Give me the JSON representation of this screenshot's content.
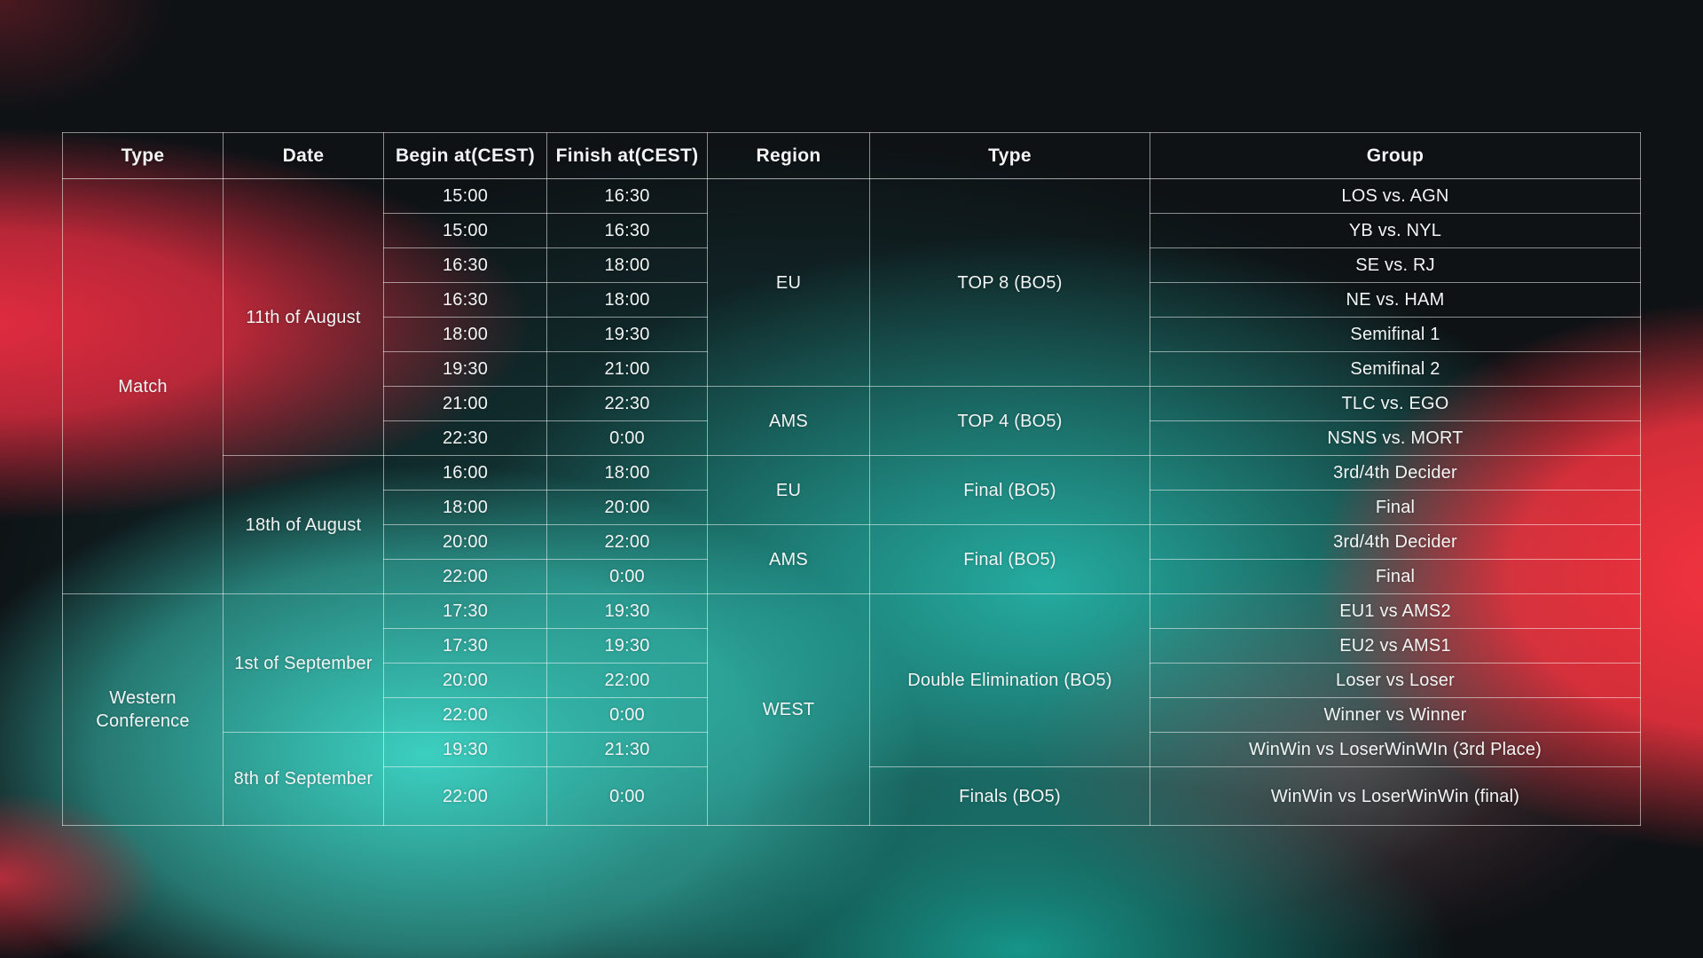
{
  "theme": {
    "accent_red": "#e62c40",
    "accent_red_bright": "#f5333f",
    "accent_teal": "#3ed8c8",
    "accent_teal_deep": "#1aa396",
    "background_dark": "#0e1215",
    "table_border": "rgba(255,255,255,0.52)",
    "text_color": "#f2f4f4"
  },
  "table": {
    "headers": [
      "Type",
      "Date",
      "Begin at(CEST)",
      "Finish at(CEST)",
      "Region",
      "Type",
      "Group"
    ],
    "merged_columns": {
      "type": [
        {
          "label": "Match",
          "span": 12
        },
        {
          "label": "Western Conference",
          "span": 6
        }
      ],
      "date": [
        {
          "label": "11th of August",
          "span": 8
        },
        {
          "label": "18th of August",
          "span": 4
        },
        {
          "label": "1st of September",
          "span": 4
        },
        {
          "label": "8th of September",
          "span": 2
        }
      ],
      "region": [
        {
          "label": "EU",
          "span": 6
        },
        {
          "label": "AMS",
          "span": 2
        },
        {
          "label": "EU",
          "span": 2
        },
        {
          "label": "AMS",
          "span": 2
        },
        {
          "label": "WEST",
          "span": 6
        }
      ],
      "stage": [
        {
          "label": "TOP 8 (BO5)",
          "span": 6
        },
        {
          "label": "TOP 4 (BO5)",
          "span": 2
        },
        {
          "label": "Final (BO5)",
          "span": 2
        },
        {
          "label": "Final (BO5)",
          "span": 2
        },
        {
          "label": "Double Elimination (BO5)",
          "span": 5
        },
        {
          "label": "Finals (BO5)",
          "span": 1
        }
      ]
    },
    "rows": [
      {
        "begin": "15:00",
        "finish": "16:30",
        "group": "LOS vs. AGN"
      },
      {
        "begin": "15:00",
        "finish": "16:30",
        "group": "YB vs. NYL"
      },
      {
        "begin": "16:30",
        "finish": "18:00",
        "group": "SE vs. RJ"
      },
      {
        "begin": "16:30",
        "finish": "18:00",
        "group": "NE vs. HAM"
      },
      {
        "begin": "18:00",
        "finish": "19:30",
        "group": "Semifinal 1"
      },
      {
        "begin": "19:30",
        "finish": "21:00",
        "group": "Semifinal 2"
      },
      {
        "begin": "21:00",
        "finish": "22:30",
        "group": "TLC vs. EGO"
      },
      {
        "begin": "22:30",
        "finish": "0:00",
        "group": "NSNS vs. MORT"
      },
      {
        "begin": "16:00",
        "finish": "18:00",
        "group": "3rd/4th Decider"
      },
      {
        "begin": "18:00",
        "finish": "20:00",
        "group": "Final"
      },
      {
        "begin": "20:00",
        "finish": "22:00",
        "group": "3rd/4th Decider"
      },
      {
        "begin": "22:00",
        "finish": "0:00",
        "group": "Final"
      },
      {
        "begin": "17:30",
        "finish": "19:30",
        "group": "EU1 vs AMS2"
      },
      {
        "begin": "17:30",
        "finish": "19:30",
        "group": "EU2 vs AMS1"
      },
      {
        "begin": "20:00",
        "finish": "22:00",
        "group": "Loser vs Loser"
      },
      {
        "begin": "22:00",
        "finish": "0:00",
        "group": "Winner vs Winner"
      },
      {
        "begin": "19:30",
        "finish": "21:30",
        "group": "WinWin vs LoserWinWIn (3rd Place)"
      },
      {
        "begin": "22:00",
        "finish": "0:00",
        "group": "WinWin vs LoserWinWin (final)"
      }
    ]
  }
}
